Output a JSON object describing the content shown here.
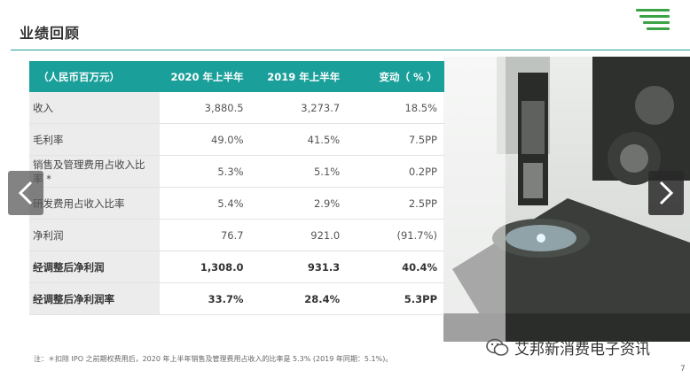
{
  "header": {
    "title": "业绩回顾",
    "page_number": "7"
  },
  "table": {
    "columns": [
      "（人民币百万元）",
      "2020 年上半年",
      "2019 年上半年",
      "变动（ % ）"
    ],
    "rows": [
      {
        "label": "收入",
        "v2020": "3,880.5",
        "v2019": "3,273.7",
        "change": "18.5%"
      },
      {
        "label": "毛利率",
        "v2020": "49.0%",
        "v2019": "41.5%",
        "change": "7.5PP"
      },
      {
        "label": "销售及管理费用占收入比率 *",
        "v2020": "5.3%",
        "v2019": "5.1%",
        "change": "0.2PP"
      },
      {
        "label": "研发费用占收入比率",
        "v2020": "5.4%",
        "v2019": "2.9%",
        "change": "2.5PP"
      },
      {
        "label": "净利润",
        "v2020": "76.7",
        "v2019": "921.0",
        "change": "(91.7%)"
      },
      {
        "label": "经调整后净利润",
        "v2020": "1,308.0",
        "v2019": "931.3",
        "change": "40.4%"
      },
      {
        "label": "经调整后净利润率",
        "v2020": "33.7%",
        "v2019": "28.4%",
        "change": "5.3PP"
      }
    ]
  },
  "footnote": "注：＊扣除 IPO 之前期权费用后，2020 年上半年销售及管理费用占收入的比率是 5.3% (2019 年同期：5.1%)。",
  "watermark": "艾邦新消费电子资讯",
  "colors": {
    "accent": "#1a9f9a",
    "logo": "#3aa346"
  },
  "icons": {
    "prev": "chevron-left-icon",
    "next": "chevron-right-icon",
    "wechat": "wechat-icon"
  }
}
